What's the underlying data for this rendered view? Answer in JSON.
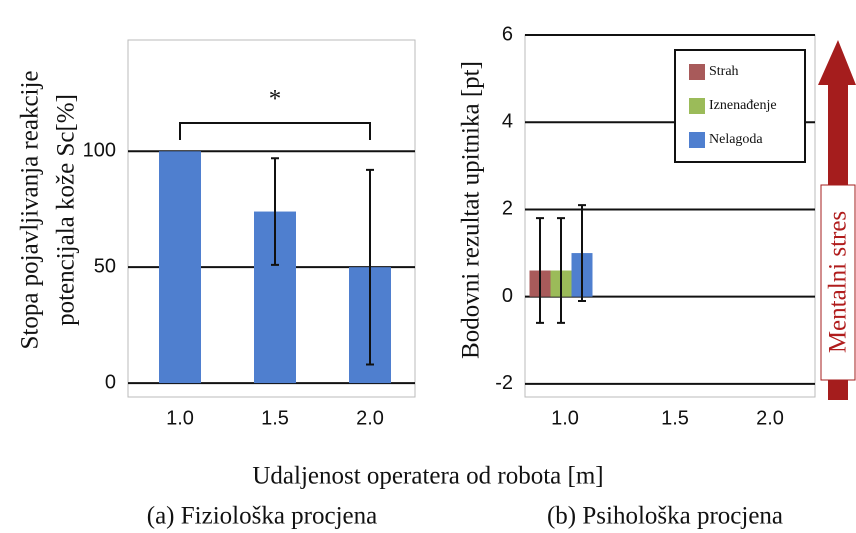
{
  "chart_data": [
    {
      "type": "bar",
      "categories": [
        "1.0",
        "1.5",
        "2.0"
      ],
      "values": [
        100,
        74,
        50
      ],
      "errors": [
        null,
        23,
        42
      ],
      "color": "#4f7fcf",
      "ylim": [
        -6,
        148
      ],
      "yticks": [
        0,
        50,
        100
      ],
      "grid": true,
      "ylabel": [
        "Stopa pojavljivanja reakcije",
        "potencijala kože Sc[%]"
      ],
      "annotation": "*",
      "caption": "(a) Fiziološka procjena"
    },
    {
      "type": "grouped_bar",
      "categories": [
        "1.0",
        "1.5",
        "2.0"
      ],
      "series": [
        {
          "name": "Strah",
          "color": "#a85a5a",
          "values": [
            0.6,
            null,
            null
          ],
          "errors": [
            1.2,
            null,
            null
          ]
        },
        {
          "name": "Iznenađenje",
          "color": "#9bbb59",
          "values": [
            0.6,
            null,
            null
          ],
          "errors": [
            1.2,
            null,
            null
          ]
        },
        {
          "name": "Nelagoda",
          "color": "#4f7fcf",
          "values": [
            1.0,
            null,
            null
          ],
          "errors": [
            1.1,
            null,
            null
          ]
        }
      ],
      "ylim": [
        -2.3,
        6
      ],
      "yticks": [
        -2,
        0,
        2,
        4,
        6
      ],
      "grid": true,
      "legend": "upper-right",
      "ylabel": "Bodovni rezultat upitnika [pt]",
      "annotation": "Mentalni stres",
      "caption": "(b) Psihološka procjena"
    }
  ],
  "xlabel": "Udaljenost operatera od robota [m]"
}
